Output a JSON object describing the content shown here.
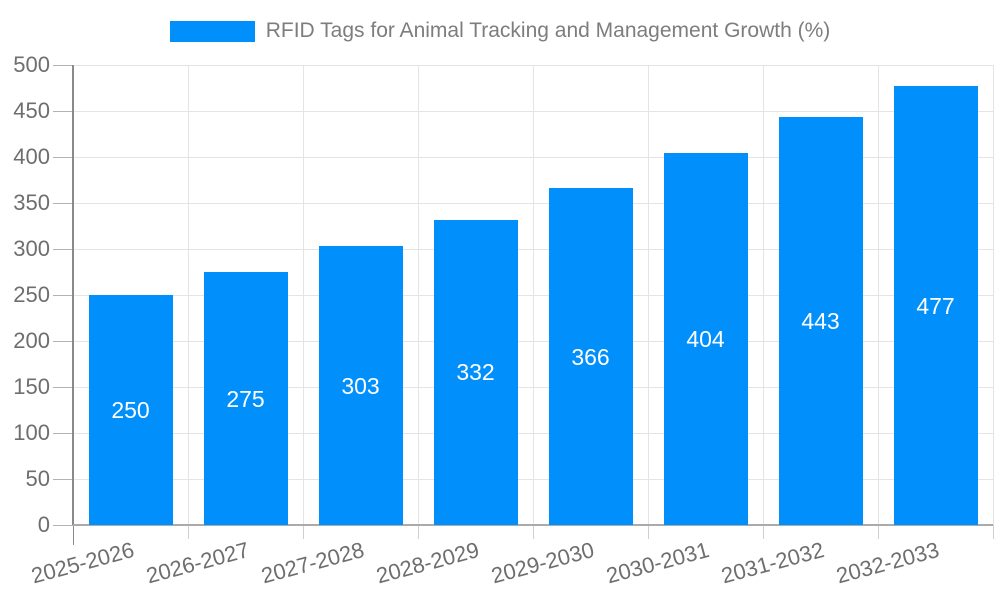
{
  "chart_data": {
    "type": "bar",
    "title": "RFID Tags for Animal Tracking and Management Growth (%)",
    "categories": [
      "2025-2026",
      "2026-2027",
      "2027-2028",
      "2028-2029",
      "2029-2030",
      "2030-2031",
      "2031-2032",
      "2032-2033"
    ],
    "values": [
      250,
      275,
      303,
      332,
      366,
      404,
      443,
      477
    ],
    "xlabel": "",
    "ylabel": "",
    "ylim": [
      0,
      500
    ],
    "yticks": [
      0,
      50,
      100,
      150,
      200,
      250,
      300,
      350,
      400,
      450,
      500
    ],
    "grid": true,
    "legend_position": "top",
    "bar_color": "#008FFB",
    "x_label_rotation_deg": -15,
    "value_label_position": "inside-center"
  },
  "colors": {
    "bar": "#008FFB",
    "grid": "#e4e4e4",
    "axis_y_line": "#8a8a8a",
    "axis_x_line": "#ababab",
    "tick_y": "#b3b3b3",
    "tick_x": "#cfcfcf",
    "axis_label": "#6e6e6e",
    "legend_text": "#7d7d7d",
    "value_label": "#ffffff",
    "background": "#ffffff"
  }
}
